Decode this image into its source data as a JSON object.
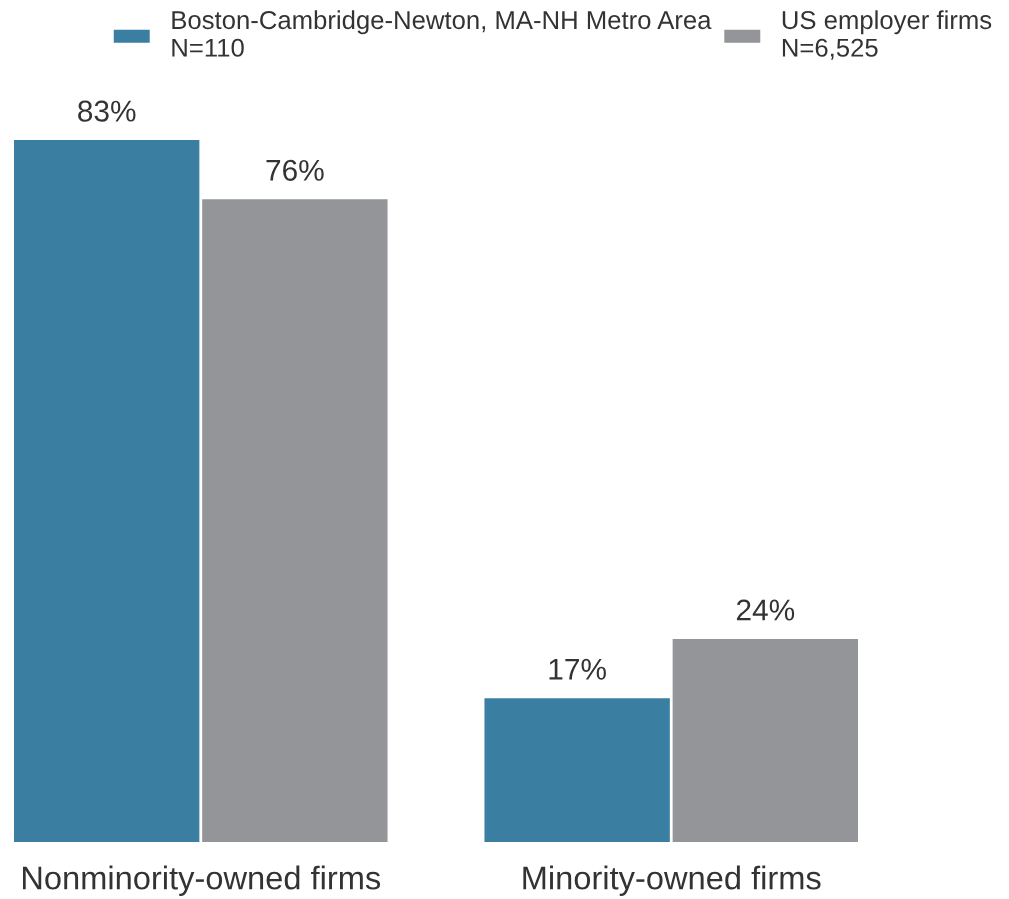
{
  "chart_data": {
    "type": "bar",
    "categories": [
      "Nonminority-owned firms",
      "Minority-owned firms"
    ],
    "series": [
      {
        "name": "Boston-Cambridge-Newton, MA-NH Metro Area\nN=110",
        "color": "#3a7ea1",
        "values": [
          83,
          17
        ],
        "value_labels": [
          "83%",
          "17%"
        ]
      },
      {
        "name": "US employer firms\nN=6,525",
        "color": "#939598",
        "values": [
          76,
          24
        ],
        "value_labels": [
          "76%",
          "24%"
        ]
      }
    ],
    "legend": "top",
    "tick_labels": "x"
  }
}
